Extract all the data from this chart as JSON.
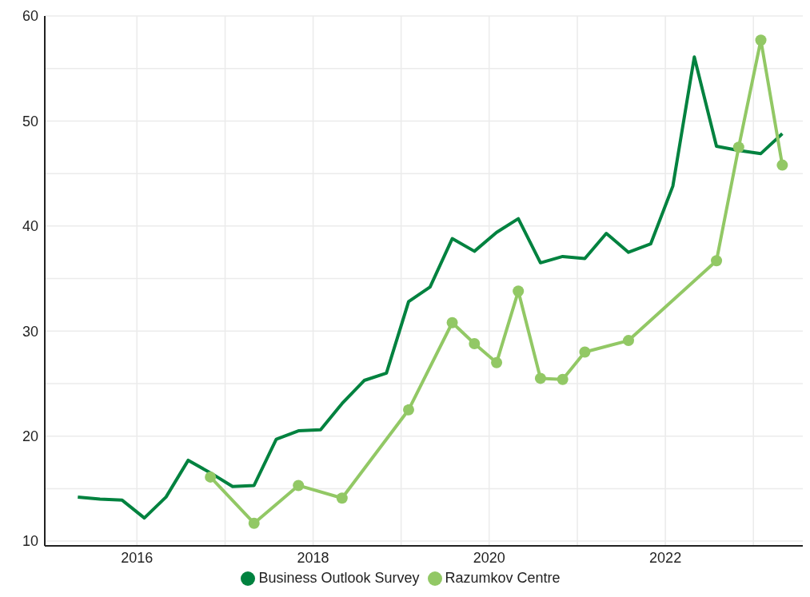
{
  "chart_data": {
    "type": "line",
    "legend": "bottom",
    "grid": true,
    "line_style": "solid",
    "xlim": [
      "2014-12-15",
      "2023-07-25"
    ],
    "xticks": [
      {
        "value": "2016-01-01",
        "label": "2016"
      },
      {
        "value": "2017-01-01",
        "label": null
      },
      {
        "value": "2018-01-01",
        "label": "2018"
      },
      {
        "value": "2019-01-01",
        "label": null
      },
      {
        "value": "2020-01-01",
        "label": "2020"
      },
      {
        "value": "2021-01-01",
        "label": null
      },
      {
        "value": "2022-01-01",
        "label": "2022"
      },
      {
        "value": "2023-01-01",
        "label": null
      }
    ],
    "ylim": [
      9.55,
      60
    ],
    "yticks": [
      10,
      {
        "value": 15,
        "label": null
      },
      20,
      {
        "value": 25,
        "label": null
      },
      30,
      {
        "value": 35,
        "label": null
      },
      40,
      {
        "value": 45,
        "label": null
      },
      50,
      {
        "value": 55,
        "label": null
      },
      60
    ],
    "series": [
      {
        "name": "Business Outlook Survey",
        "color": "#00823f",
        "marker": "none",
        "x": [
          "2015-05",
          "2015-08",
          "2015-11",
          "2016-02",
          "2016-05",
          "2016-08",
          "2016-11",
          "2017-02",
          "2017-05",
          "2017-08",
          "2017-11",
          "2018-02",
          "2018-05",
          "2018-08",
          "2018-11",
          "2019-02",
          "2019-05",
          "2019-08",
          "2019-11",
          "2020-02",
          "2020-05",
          "2020-08",
          "2020-11",
          "2021-02",
          "2021-05",
          "2021-08",
          "2021-11",
          "2022-02",
          "2022-05",
          "2022-08",
          "2022-11",
          "2023-02",
          "2023-05"
        ],
        "values": [
          14.2,
          14.0,
          13.9,
          12.2,
          14.2,
          17.7,
          16.5,
          15.2,
          15.3,
          19.7,
          20.5,
          20.6,
          23.1,
          25.3,
          26.0,
          32.8,
          34.2,
          38.8,
          37.6,
          39.4,
          40.7,
          36.5,
          37.1,
          36.9,
          39.3,
          37.5,
          38.3,
          43.8,
          56.1,
          47.6,
          47.2,
          46.9,
          48.8
        ]
      },
      {
        "name": "Razumkov Centre",
        "color": "#92c865",
        "marker": "circle",
        "x": [
          "2016-11",
          "2017-05",
          "2017-11",
          "2018-05",
          "2019-02",
          "2019-08",
          "2019-11",
          "2020-02",
          "2020-05",
          "2020-08",
          "2020-11",
          "2021-02",
          "2021-08",
          "2022-08",
          "2022-11",
          "2023-02",
          "2023-05"
        ],
        "values": [
          16.1,
          11.7,
          15.3,
          14.1,
          22.5,
          30.8,
          28.8,
          27.0,
          33.8,
          25.5,
          25.4,
          28.0,
          29.1,
          36.7,
          47.5,
          57.7,
          45.8
        ]
      }
    ]
  }
}
